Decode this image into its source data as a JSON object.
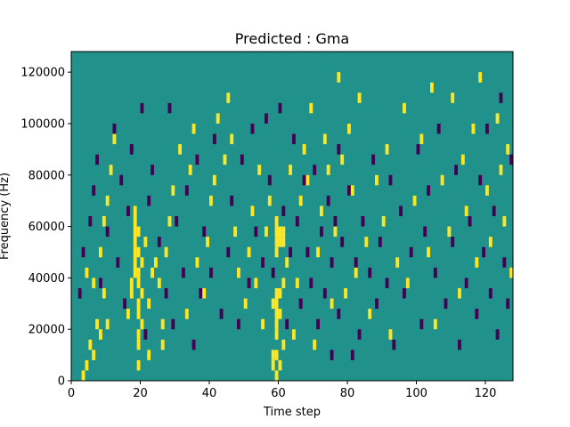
{
  "chart_data": {
    "type": "heatmap",
    "title": "Predicted : Gma",
    "xlabel": "Time step",
    "ylabel": "Frequency (Hz)",
    "xlim": [
      0,
      128
    ],
    "ylim": [
      0,
      128000
    ],
    "x_ticks": [
      {
        "value": 0,
        "label": "0"
      },
      {
        "value": 20,
        "label": "20"
      },
      {
        "value": 40,
        "label": "40"
      },
      {
        "value": 60,
        "label": "60"
      },
      {
        "value": 80,
        "label": "80"
      },
      {
        "value": 100,
        "label": "100"
      },
      {
        "value": 120,
        "label": "120"
      }
    ],
    "y_ticks": [
      {
        "value": 0,
        "label": "0"
      },
      {
        "value": 20000,
        "label": "20000"
      },
      {
        "value": 40000,
        "label": "40000"
      },
      {
        "value": 60000,
        "label": "60000"
      },
      {
        "value": 80000,
        "label": "80000"
      },
      {
        "value": 100000,
        "label": "100000"
      },
      {
        "value": 120000,
        "label": "120000"
      }
    ],
    "colormap": {
      "low": "#440154",
      "mid": "#21918c",
      "high": "#fde725"
    },
    "background_level": "mid",
    "grid": false,
    "cell_width": 1,
    "cell_height": 4000,
    "high_cells": [
      [
        3,
        0
      ],
      [
        4,
        1
      ],
      [
        5,
        3
      ],
      [
        6,
        2
      ],
      [
        7,
        5
      ],
      [
        8,
        4
      ],
      [
        9,
        8
      ],
      [
        10,
        5
      ],
      [
        4,
        10
      ],
      [
        6,
        9
      ],
      [
        8,
        12
      ],
      [
        9,
        15
      ],
      [
        10,
        17
      ],
      [
        11,
        20
      ],
      [
        12,
        23
      ],
      [
        16,
        6
      ],
      [
        17,
        8
      ],
      [
        17,
        9
      ],
      [
        18,
        10
      ],
      [
        18,
        11
      ],
      [
        18,
        12
      ],
      [
        18,
        13
      ],
      [
        18,
        14
      ],
      [
        18,
        15
      ],
      [
        18,
        16
      ],
      [
        19,
        1
      ],
      [
        19,
        3
      ],
      [
        19,
        4
      ],
      [
        19,
        6
      ],
      [
        19,
        7
      ],
      [
        19,
        9
      ],
      [
        19,
        10
      ],
      [
        19,
        12
      ],
      [
        19,
        14
      ],
      [
        20,
        5
      ],
      [
        20,
        8
      ],
      [
        20,
        11
      ],
      [
        21,
        13
      ],
      [
        22,
        2
      ],
      [
        22,
        7
      ],
      [
        23,
        10
      ],
      [
        24,
        11
      ],
      [
        25,
        9
      ],
      [
        26,
        3
      ],
      [
        26,
        5
      ],
      [
        27,
        12
      ],
      [
        28,
        15
      ],
      [
        29,
        18
      ],
      [
        31,
        22
      ],
      [
        33,
        6
      ],
      [
        34,
        20
      ],
      [
        35,
        24
      ],
      [
        36,
        11
      ],
      [
        38,
        8
      ],
      [
        39,
        13
      ],
      [
        40,
        17
      ],
      [
        41,
        19
      ],
      [
        42,
        25
      ],
      [
        44,
        21
      ],
      [
        45,
        27
      ],
      [
        46,
        23
      ],
      [
        47,
        14
      ],
      [
        48,
        10
      ],
      [
        50,
        7
      ],
      [
        51,
        12
      ],
      [
        52,
        16
      ],
      [
        53,
        9
      ],
      [
        54,
        20
      ],
      [
        55,
        5
      ],
      [
        56,
        14
      ],
      [
        57,
        17
      ],
      [
        58,
        1
      ],
      [
        58,
        2
      ],
      [
        58,
        7
      ],
      [
        59,
        0
      ],
      [
        59,
        2
      ],
      [
        59,
        4
      ],
      [
        59,
        5
      ],
      [
        59,
        6
      ],
      [
        59,
        7
      ],
      [
        59,
        8
      ],
      [
        59,
        12
      ],
      [
        59,
        13
      ],
      [
        59,
        14
      ],
      [
        59,
        15
      ],
      [
        60,
        1
      ],
      [
        60,
        6
      ],
      [
        60,
        8
      ],
      [
        60,
        13
      ],
      [
        60,
        14
      ],
      [
        61,
        3
      ],
      [
        61,
        9
      ],
      [
        61,
        13
      ],
      [
        61,
        14
      ],
      [
        62,
        11
      ],
      [
        63,
        20
      ],
      [
        64,
        4
      ],
      [
        65,
        9
      ],
      [
        66,
        17
      ],
      [
        67,
        22
      ],
      [
        68,
        19
      ],
      [
        69,
        26
      ],
      [
        70,
        3
      ],
      [
        71,
        12
      ],
      [
        72,
        16
      ],
      [
        73,
        23
      ],
      [
        74,
        20
      ],
      [
        75,
        7
      ],
      [
        76,
        14
      ],
      [
        77,
        29
      ],
      [
        78,
        21
      ],
      [
        79,
        8
      ],
      [
        80,
        24
      ],
      [
        81,
        18
      ],
      [
        82,
        10
      ],
      [
        83,
        27
      ],
      [
        85,
        13
      ],
      [
        86,
        6
      ],
      [
        88,
        19
      ],
      [
        90,
        15
      ],
      [
        91,
        22
      ],
      [
        92,
        4
      ],
      [
        94,
        11
      ],
      [
        96,
        26
      ],
      [
        97,
        9
      ],
      [
        99,
        17
      ],
      [
        101,
        23
      ],
      [
        103,
        12
      ],
      [
        104,
        28
      ],
      [
        105,
        5
      ],
      [
        107,
        19
      ],
      [
        109,
        14
      ],
      [
        110,
        27
      ],
      [
        112,
        8
      ],
      [
        113,
        21
      ],
      [
        114,
        16
      ],
      [
        116,
        24
      ],
      [
        117,
        11
      ],
      [
        118,
        29
      ],
      [
        120,
        18
      ],
      [
        121,
        13
      ],
      [
        123,
        25
      ],
      [
        124,
        20
      ],
      [
        125,
        15
      ],
      [
        126,
        22
      ],
      [
        127,
        10
      ]
    ],
    "low_cells": [
      [
        2,
        8
      ],
      [
        3,
        12
      ],
      [
        5,
        15
      ],
      [
        6,
        18
      ],
      [
        7,
        21
      ],
      [
        8,
        9
      ],
      [
        10,
        14
      ],
      [
        12,
        24
      ],
      [
        13,
        11
      ],
      [
        14,
        19
      ],
      [
        15,
        7
      ],
      [
        16,
        16
      ],
      [
        17,
        22
      ],
      [
        20,
        26
      ],
      [
        21,
        4
      ],
      [
        22,
        17
      ],
      [
        23,
        20
      ],
      [
        25,
        13
      ],
      [
        27,
        8
      ],
      [
        28,
        26
      ],
      [
        29,
        5
      ],
      [
        30,
        15
      ],
      [
        32,
        10
      ],
      [
        33,
        18
      ],
      [
        35,
        3
      ],
      [
        36,
        21
      ],
      [
        37,
        8
      ],
      [
        38,
        14
      ],
      [
        40,
        10
      ],
      [
        41,
        23
      ],
      [
        43,
        6
      ],
      [
        45,
        12
      ],
      [
        46,
        17
      ],
      [
        48,
        5
      ],
      [
        49,
        21
      ],
      [
        51,
        9
      ],
      [
        52,
        24
      ],
      [
        53,
        14
      ],
      [
        55,
        11
      ],
      [
        56,
        25
      ],
      [
        57,
        19
      ],
      [
        58,
        10
      ],
      [
        60,
        26
      ],
      [
        61,
        16
      ],
      [
        62,
        5
      ],
      [
        63,
        12
      ],
      [
        64,
        23
      ],
      [
        65,
        15
      ],
      [
        66,
        7
      ],
      [
        67,
        19
      ],
      [
        68,
        12
      ],
      [
        69,
        9
      ],
      [
        70,
        20
      ],
      [
        71,
        5
      ],
      [
        72,
        14
      ],
      [
        73,
        8
      ],
      [
        74,
        17
      ],
      [
        75,
        2
      ],
      [
        75,
        11
      ],
      [
        76,
        15
      ],
      [
        77,
        6
      ],
      [
        77,
        22
      ],
      [
        78,
        13
      ],
      [
        80,
        18
      ],
      [
        81,
        2
      ],
      [
        82,
        11
      ],
      [
        83,
        4
      ],
      [
        84,
        15
      ],
      [
        86,
        10
      ],
      [
        87,
        21
      ],
      [
        88,
        7
      ],
      [
        89,
        13
      ],
      [
        91,
        9
      ],
      [
        92,
        19
      ],
      [
        93,
        3
      ],
      [
        95,
        16
      ],
      [
        96,
        8
      ],
      [
        98,
        12
      ],
      [
        100,
        22
      ],
      [
        101,
        5
      ],
      [
        102,
        14
      ],
      [
        103,
        18
      ],
      [
        105,
        10
      ],
      [
        106,
        24
      ],
      [
        108,
        7
      ],
      [
        110,
        13
      ],
      [
        111,
        20
      ],
      [
        112,
        3
      ],
      [
        114,
        9
      ],
      [
        115,
        15
      ],
      [
        117,
        6
      ],
      [
        118,
        19
      ],
      [
        119,
        12
      ],
      [
        120,
        24
      ],
      [
        121,
        8
      ],
      [
        122,
        16
      ],
      [
        123,
        4
      ],
      [
        124,
        27
      ],
      [
        125,
        11
      ],
      [
        126,
        7
      ],
      [
        127,
        21
      ]
    ]
  }
}
